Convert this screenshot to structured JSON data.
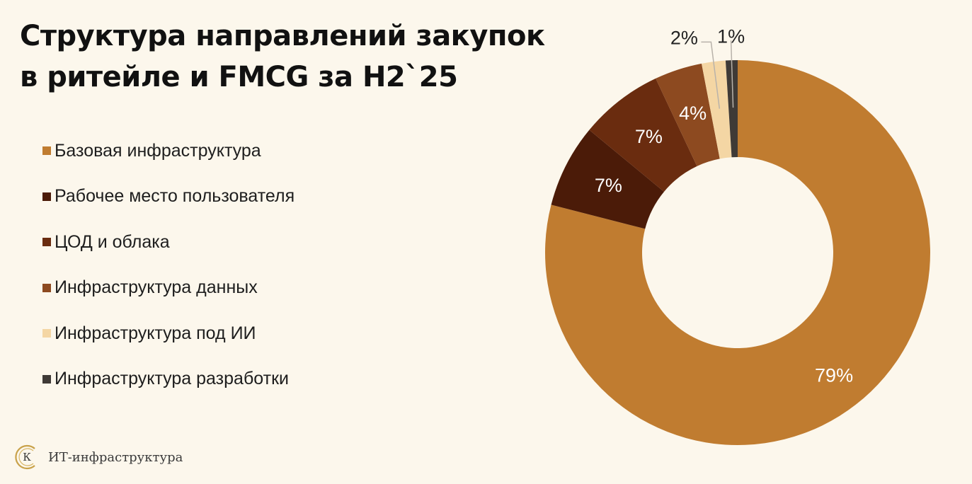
{
  "title_line1": "Структура направлений закупок",
  "title_line2": "в ритейле и FMCG за H2`25",
  "chart_data": {
    "type": "pie",
    "variant": "donut",
    "title": "Структура направлений закупок в ритейле и FMCG за H2`25",
    "legend_position": "left",
    "categories": [
      "Базовая инфраструктура",
      "Рабочее место пользователя",
      "ЦОД и облака",
      "Инфраструктура данных",
      "Инфраструктура под ИИ",
      "Инфраструктура разработки"
    ],
    "values": [
      79,
      7,
      7,
      4,
      2,
      1
    ],
    "labels": [
      "79%",
      "7%",
      "7%",
      "4%",
      "2%",
      "1%"
    ],
    "colors": [
      "#c07c30",
      "#4b1b08",
      "#6a2c0f",
      "#8d4a20",
      "#f4d6a4",
      "#3f3a36"
    ]
  },
  "footer": {
    "logo_letter": "К",
    "brand": "ИТ-инфраструктура"
  }
}
